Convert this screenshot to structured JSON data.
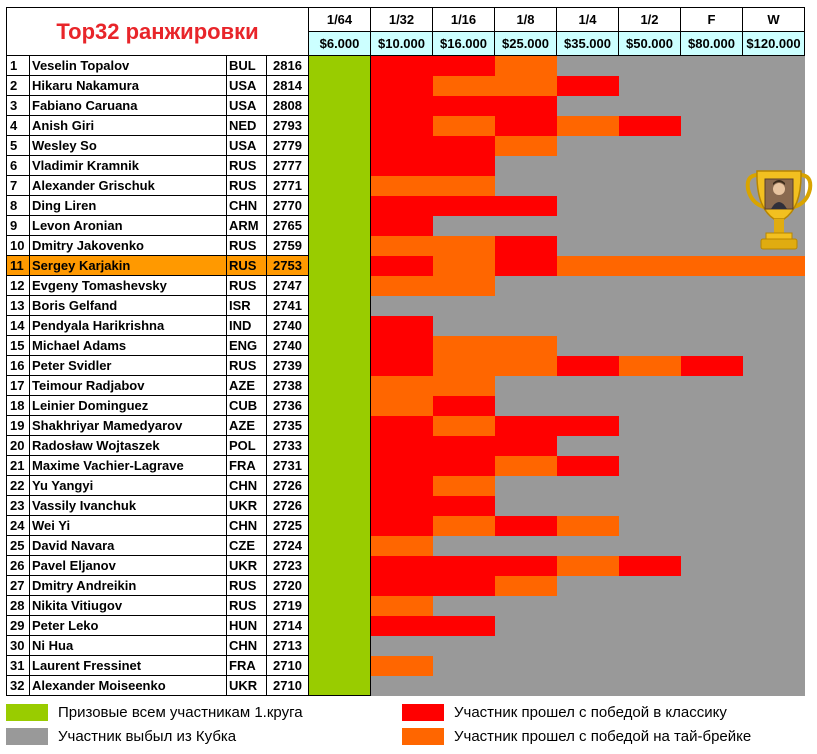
{
  "title": "Top32 ранжировки",
  "rounds": [
    "1/64",
    "1/32",
    "1/16",
    "1/8",
    "1/4",
    "1/2",
    "F",
    "W"
  ],
  "prizes": [
    "$6.000",
    "$10.000",
    "$16.000",
    "$25.000",
    "$35.000",
    "$50.000",
    "$80.000",
    "$120.000"
  ],
  "colors": {
    "green": "#99cc00",
    "red": "#ff0000",
    "orange": "#ff6600",
    "gray": "#999999",
    "highlight": "#ff9900",
    "title": "#e8252a"
  },
  "players": [
    {
      "n": "1",
      "name": "Veselin Topalov",
      "country": "BUL",
      "rating": "2816",
      "res": [
        "R",
        "R",
        "O",
        "G",
        "G",
        "G",
        "G"
      ]
    },
    {
      "n": "2",
      "name": "Hikaru Nakamura",
      "country": "USA",
      "rating": "2814",
      "res": [
        "R",
        "O",
        "O",
        "R",
        "G",
        "G",
        "G"
      ]
    },
    {
      "n": "3",
      "name": "Fabiano Caruana",
      "country": "USA",
      "rating": "2808",
      "res": [
        "R",
        "R",
        "R",
        "G",
        "G",
        "G",
        "G"
      ]
    },
    {
      "n": "4",
      "name": "Anish Giri",
      "country": "NED",
      "rating": "2793",
      "res": [
        "R",
        "O",
        "R",
        "O",
        "R",
        "G",
        "G"
      ]
    },
    {
      "n": "5",
      "name": "Wesley So",
      "country": "USA",
      "rating": "2779",
      "res": [
        "R",
        "R",
        "O",
        "G",
        "G",
        "G",
        "G"
      ]
    },
    {
      "n": "6",
      "name": "Vladimir Kramnik",
      "country": "RUS",
      "rating": "2777",
      "res": [
        "R",
        "R",
        "G",
        "G",
        "G",
        "G",
        "G"
      ]
    },
    {
      "n": "7",
      "name": "Alexander Grischuk",
      "country": "RUS",
      "rating": "2771",
      "res": [
        "O",
        "O",
        "G",
        "G",
        "G",
        "G",
        "G"
      ]
    },
    {
      "n": "8",
      "name": "Ding Liren",
      "country": "CHN",
      "rating": "2770",
      "res": [
        "R",
        "R",
        "R",
        "G",
        "G",
        "G",
        "G"
      ]
    },
    {
      "n": "9",
      "name": "Levon Aronian",
      "country": "ARM",
      "rating": "2765",
      "res": [
        "R",
        "G",
        "G",
        "G",
        "G",
        "G",
        "G"
      ]
    },
    {
      "n": "10",
      "name": "Dmitry Jakovenko",
      "country": "RUS",
      "rating": "2759",
      "res": [
        "O",
        "O",
        "R",
        "G",
        "G",
        "G",
        "G"
      ]
    },
    {
      "n": "11",
      "name": "Sergey Karjakin",
      "country": "RUS",
      "rating": "2753",
      "highlight": true,
      "res": [
        "R",
        "O",
        "R",
        "O",
        "O",
        "O",
        "O"
      ]
    },
    {
      "n": "12",
      "name": "Evgeny Tomashevsky",
      "country": "RUS",
      "rating": "2747",
      "res": [
        "O",
        "O",
        "G",
        "G",
        "G",
        "G",
        "G"
      ]
    },
    {
      "n": "13",
      "name": "Boris Gelfand",
      "country": "ISR",
      "rating": "2741",
      "res": [
        "G",
        "G",
        "G",
        "G",
        "G",
        "G",
        "G"
      ]
    },
    {
      "n": "14",
      "name": "Pendyala Harikrishna",
      "country": "IND",
      "rating": "2740",
      "res": [
        "R",
        "G",
        "G",
        "G",
        "G",
        "G",
        "G"
      ]
    },
    {
      "n": "15",
      "name": "Michael Adams",
      "country": "ENG",
      "rating": "2740",
      "res": [
        "R",
        "O",
        "O",
        "G",
        "G",
        "G",
        "G"
      ]
    },
    {
      "n": "16",
      "name": "Peter Svidler",
      "country": "RUS",
      "rating": "2739",
      "res": [
        "R",
        "O",
        "O",
        "R",
        "O",
        "R",
        "G"
      ]
    },
    {
      "n": "17",
      "name": "Teimour Radjabov",
      "country": "AZE",
      "rating": "2738",
      "res": [
        "O",
        "O",
        "G",
        "G",
        "G",
        "G",
        "G"
      ]
    },
    {
      "n": "18",
      "name": "Leinier Dominguez",
      "country": "CUB",
      "rating": "2736",
      "res": [
        "O",
        "R",
        "G",
        "G",
        "G",
        "G",
        "G"
      ]
    },
    {
      "n": "19",
      "name": "Shakhriyar Mamedyarov",
      "country": "AZE",
      "rating": "2735",
      "res": [
        "R",
        "O",
        "R",
        "R",
        "G",
        "G",
        "G"
      ]
    },
    {
      "n": "20",
      "name": "Radosław Wojtaszek",
      "country": "POL",
      "rating": "2733",
      "res": [
        "R",
        "R",
        "R",
        "G",
        "G",
        "G",
        "G"
      ]
    },
    {
      "n": "21",
      "name": "Maxime Vachier-Lagrave",
      "country": "FRA",
      "rating": "2731",
      "res": [
        "R",
        "R",
        "O",
        "R",
        "G",
        "G",
        "G"
      ]
    },
    {
      "n": "22",
      "name": "Yu Yangyi",
      "country": "CHN",
      "rating": "2726",
      "res": [
        "R",
        "O",
        "G",
        "G",
        "G",
        "G",
        "G"
      ]
    },
    {
      "n": "23",
      "name": "Vassily Ivanchuk",
      "country": "UKR",
      "rating": "2726",
      "res": [
        "R",
        "R",
        "G",
        "G",
        "G",
        "G",
        "G"
      ]
    },
    {
      "n": "24",
      "name": "Wei Yi",
      "country": "CHN",
      "rating": "2725",
      "res": [
        "R",
        "O",
        "R",
        "O",
        "G",
        "G",
        "G"
      ]
    },
    {
      "n": "25",
      "name": "David Navara",
      "country": "CZE",
      "rating": "2724",
      "res": [
        "O",
        "G",
        "G",
        "G",
        "G",
        "G",
        "G"
      ]
    },
    {
      "n": "26",
      "name": "Pavel Eljanov",
      "country": "UKR",
      "rating": "2723",
      "res": [
        "R",
        "R",
        "R",
        "O",
        "R",
        "G",
        "G"
      ]
    },
    {
      "n": "27",
      "name": "Dmitry Andreikin",
      "country": "RUS",
      "rating": "2720",
      "res": [
        "R",
        "R",
        "O",
        "G",
        "G",
        "G",
        "G"
      ]
    },
    {
      "n": "28",
      "name": "Nikita Vitiugov",
      "country": "RUS",
      "rating": "2719",
      "res": [
        "O",
        "G",
        "G",
        "G",
        "G",
        "G",
        "G"
      ]
    },
    {
      "n": "29",
      "name": "Peter Leko",
      "country": "HUN",
      "rating": "2714",
      "res": [
        "R",
        "R",
        "G",
        "G",
        "G",
        "G",
        "G"
      ]
    },
    {
      "n": "30",
      "name": "Ni Hua",
      "country": "CHN",
      "rating": "2713",
      "res": [
        "G",
        "G",
        "G",
        "G",
        "G",
        "G",
        "G"
      ]
    },
    {
      "n": "31",
      "name": "Laurent Fressinet",
      "country": "FRA",
      "rating": "2710",
      "res": [
        "O",
        "G",
        "G",
        "G",
        "G",
        "G",
        "G"
      ]
    },
    {
      "n": "32",
      "name": "Alexander Moiseenko",
      "country": "UKR",
      "rating": "2710",
      "res": [
        "G",
        "G",
        "G",
        "G",
        "G",
        "G",
        "G"
      ]
    }
  ],
  "legend": {
    "green": "Призовые всем участникам 1.круга",
    "gray": "Участник выбыл из Кубка",
    "red": "Участник прошел с победой в классику",
    "orange": "Участник прошел с победой на тай-брейке"
  }
}
